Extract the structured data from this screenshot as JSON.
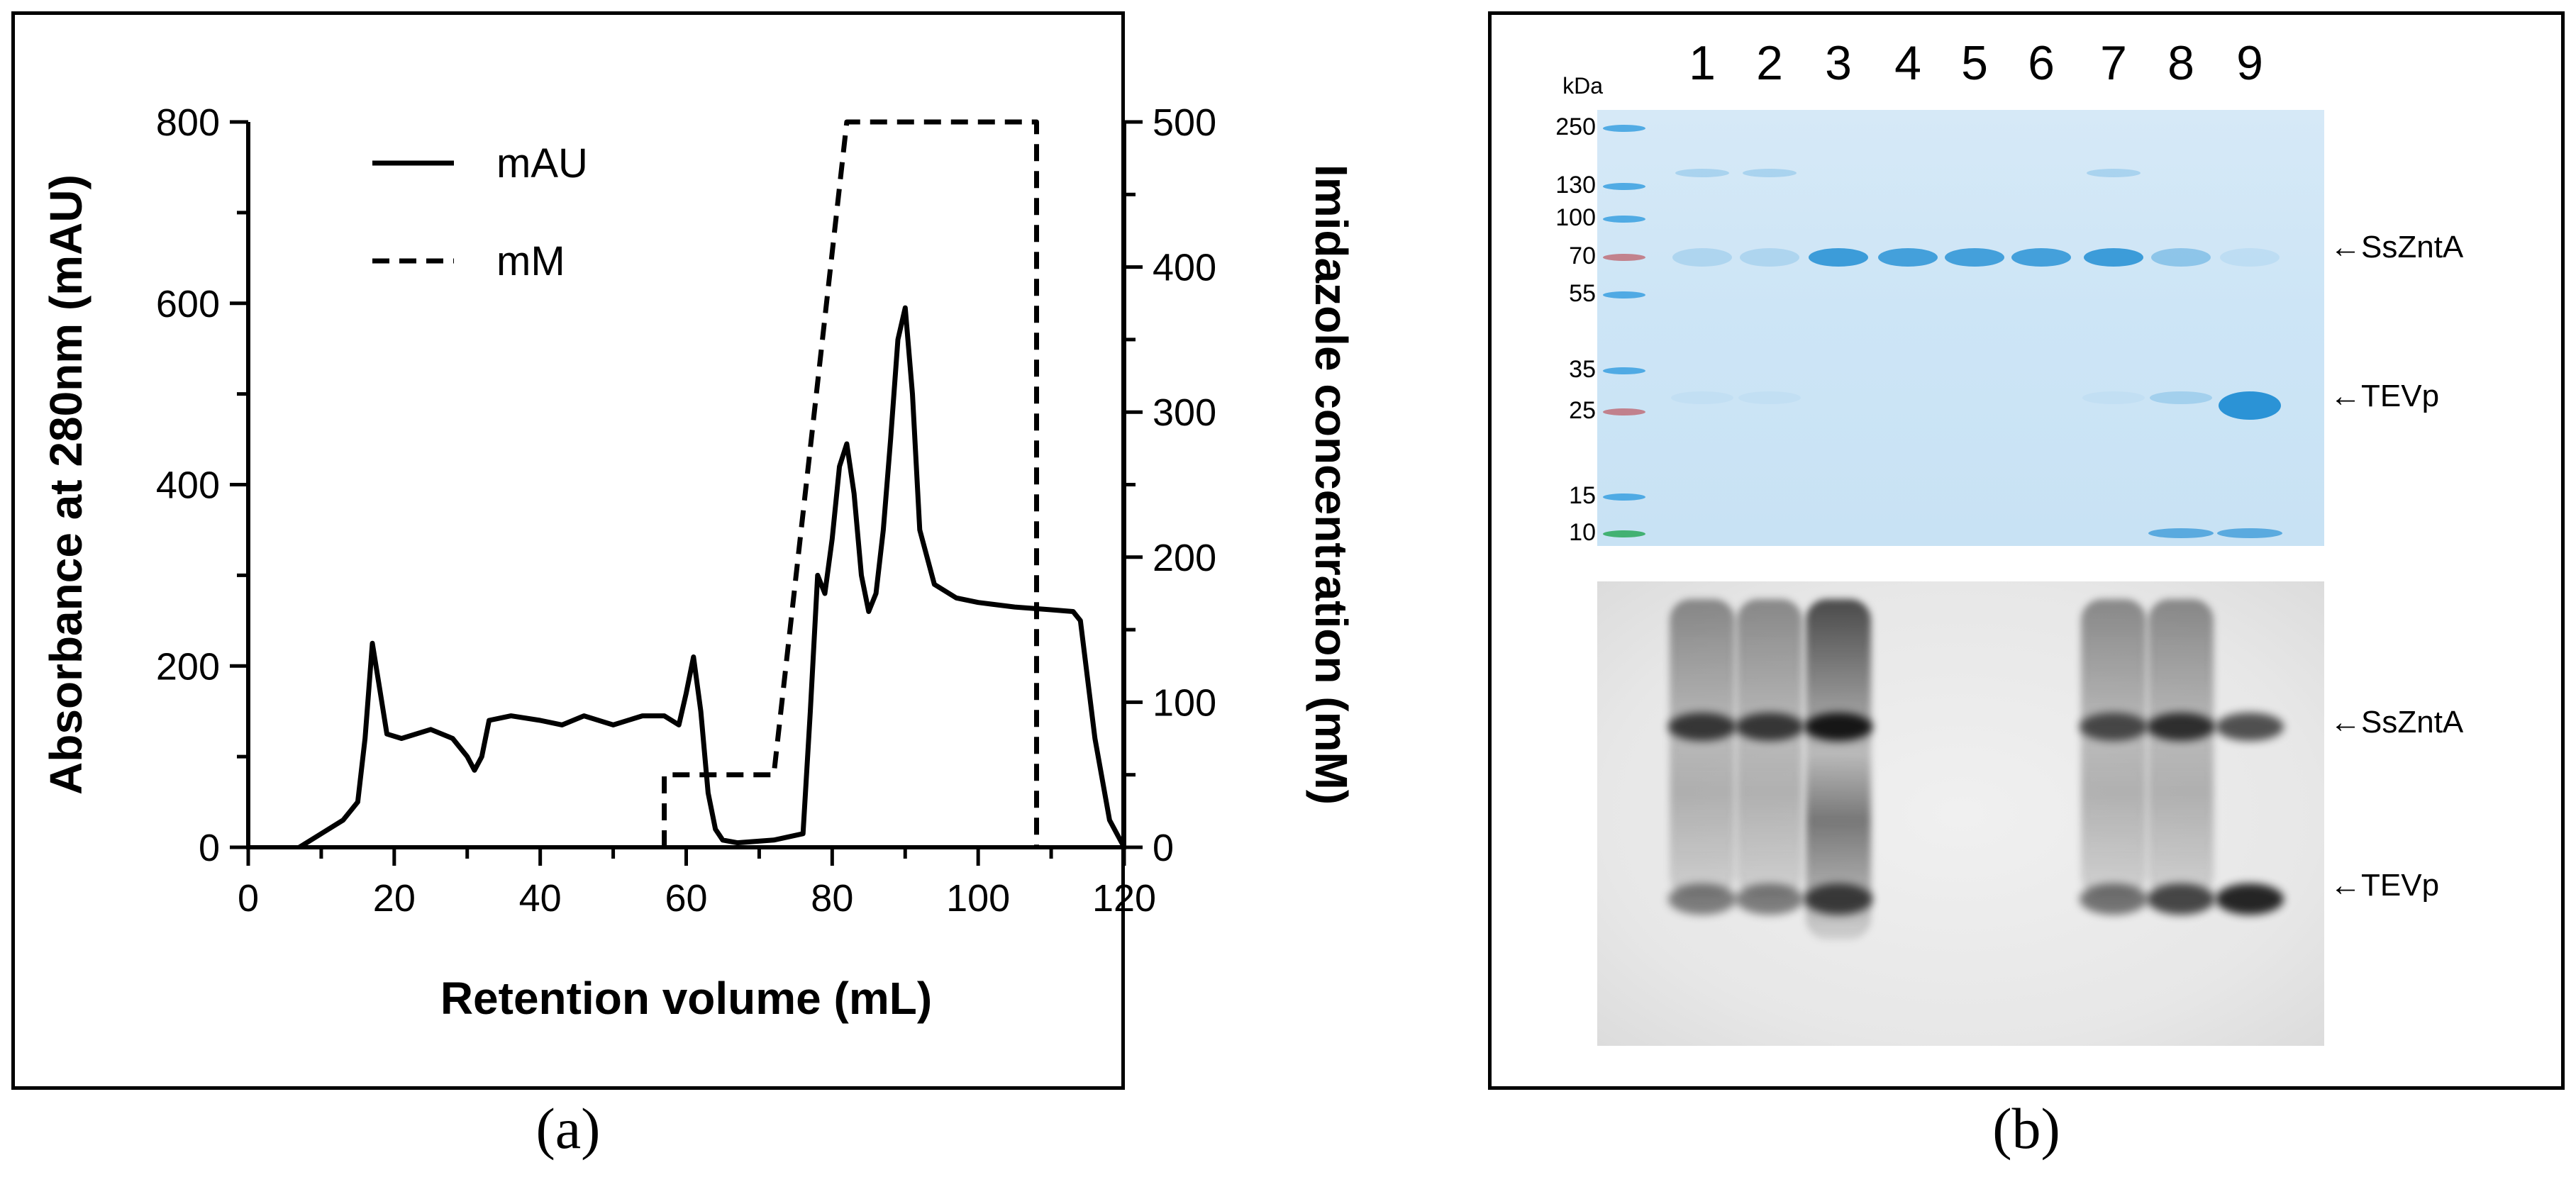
{
  "panel_labels": {
    "a": "(a)",
    "b": "(b)"
  },
  "chart_data": [
    {
      "type": "line",
      "title": "",
      "xlabel": "Retention volume (mL)",
      "ylabel": "Absorbance at 280nm (mAU)",
      "y2label": "Imidazole concentration (mM)",
      "xlim": [
        0,
        120
      ],
      "ylim": [
        0,
        800
      ],
      "y2lim": [
        0,
        500
      ],
      "xticks": [
        "0",
        "20",
        "40",
        "60",
        "80",
        "100",
        "120"
      ],
      "yticks": [
        "0",
        "200",
        "400",
        "600",
        "800"
      ],
      "y2ticks": [
        "0",
        "100",
        "200",
        "300",
        "400",
        "500"
      ],
      "legend": {
        "position": "top-left",
        "entries": [
          "mAU",
          "mM"
        ]
      },
      "series": [
        {
          "name": "mAU",
          "axis": "left",
          "style": "solid",
          "x": [
            7,
            10,
            13,
            15,
            16,
            17,
            18,
            19,
            21,
            25,
            28,
            30,
            31,
            32,
            33,
            36,
            40,
            43,
            46,
            50,
            54,
            57,
            59,
            60,
            61,
            62,
            63,
            64,
            65,
            67,
            72,
            76,
            77,
            78,
            79,
            80,
            81,
            82,
            83,
            84,
            85,
            86,
            87,
            88,
            89,
            90,
            91,
            92,
            94,
            97,
            100,
            105,
            110,
            113,
            114,
            116,
            118,
            120
          ],
          "values": [
            0,
            15,
            30,
            50,
            120,
            225,
            175,
            125,
            120,
            130,
            120,
            100,
            85,
            100,
            140,
            145,
            140,
            135,
            145,
            135,
            145,
            145,
            135,
            170,
            210,
            150,
            60,
            20,
            8,
            5,
            8,
            15,
            150,
            300,
            280,
            340,
            420,
            445,
            390,
            300,
            260,
            280,
            350,
            450,
            560,
            595,
            500,
            350,
            290,
            275,
            270,
            265,
            262,
            260,
            250,
            120,
            30,
            0
          ]
        },
        {
          "name": "mM",
          "axis": "right",
          "style": "dashed",
          "x": [
            57,
            57,
            72,
            82,
            108,
            108
          ],
          "values": [
            0,
            50,
            50,
            500,
            500,
            0
          ]
        }
      ]
    },
    {
      "type": "gel",
      "lanes": [
        "1",
        "2",
        "3",
        "4",
        "5",
        "6",
        "7",
        "8",
        "9"
      ],
      "mw_header": "kDa",
      "mw_markers": [
        "250",
        "130",
        "100",
        "70",
        "55",
        "35",
        "25",
        "15",
        "10"
      ],
      "band_labels": [
        {
          "panel": "stain",
          "text": "SsZntA"
        },
        {
          "panel": "stain",
          "text": "TEVp"
        },
        {
          "panel": "blot",
          "text": "SsZntA"
        },
        {
          "panel": "blot",
          "text": "TEVp"
        }
      ],
      "band_intensity": {
        "stain_SsZntA": [
          0.2,
          0.2,
          0.9,
          0.85,
          0.85,
          0.85,
          0.9,
          0.4,
          0.1
        ],
        "stain_TEVp": [
          0.05,
          0.05,
          0,
          0,
          0,
          0,
          0.05,
          0.25,
          1.0
        ],
        "blot_SsZntA": [
          0.8,
          0.8,
          1.0,
          0,
          0,
          0,
          0.7,
          0.85,
          0.7
        ],
        "blot_TEVp": [
          0.5,
          0.5,
          0.8,
          0,
          0,
          0,
          0.55,
          0.75,
          0.9
        ]
      },
      "colors": {
        "stain_band": "#2b93d6",
        "ladder_blue": "#3aa0e0",
        "ladder_red": "#c0707a",
        "ladder_green": "#2aa85a",
        "blot_band": "#111111"
      }
    }
  ]
}
